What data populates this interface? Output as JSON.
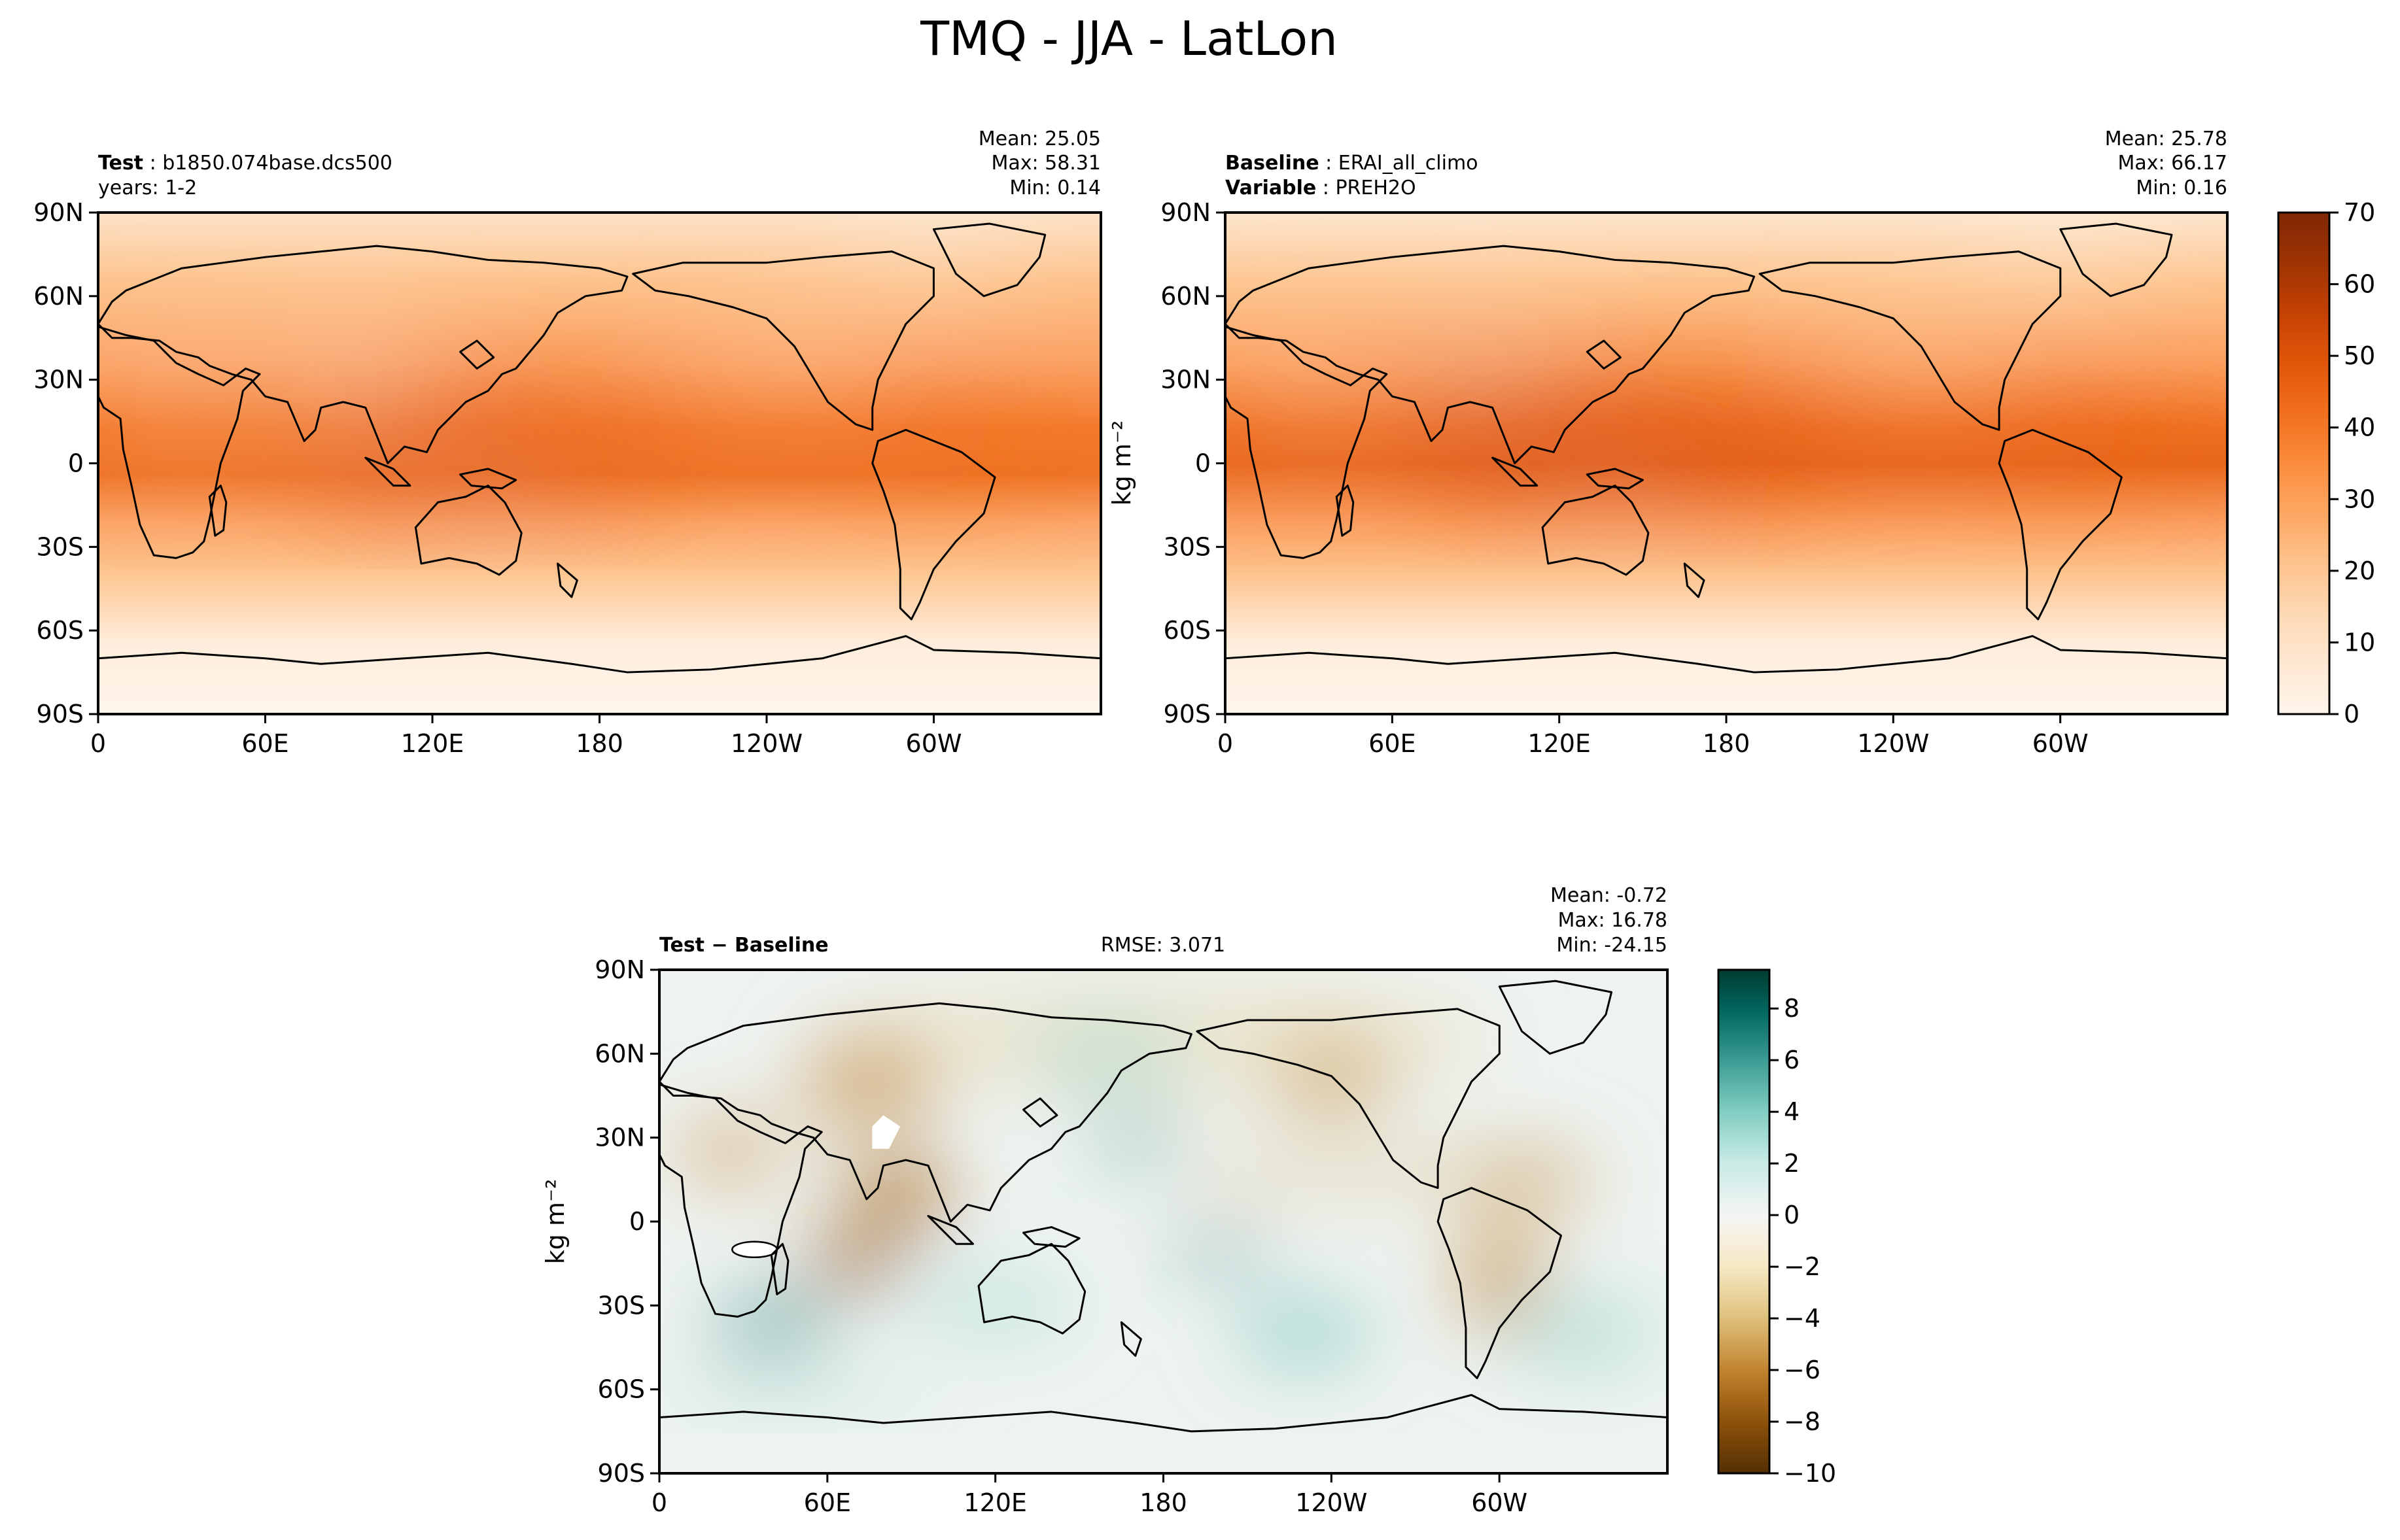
{
  "figure": {
    "title": "TMQ - JJA - LatLon"
  },
  "panels": {
    "test": {
      "name_label": "Test",
      "name_value": "b1850.074base.dcs500",
      "years": "years: 1-2",
      "mean": "Mean: 25.05",
      "max": "Max: 58.31",
      "min": "Min:  0.14"
    },
    "baseline": {
      "name_label": "Baseline",
      "name_value": "ERAI_all_climo",
      "var_label": "Variable",
      "var_value": "PREH2O",
      "mean": "Mean: 25.78",
      "max": "Max: 66.17",
      "min": "Min:  0.16"
    },
    "diff": {
      "name_label": "Test − Baseline",
      "rmse": "RMSE: 3.071",
      "mean": "Mean: -0.72",
      "max": "Max: 16.78",
      "min": "Min: -24.15"
    }
  },
  "units": "kg m⁻²",
  "colors": {
    "orange_ramp": [
      "#fff5eb",
      "#fee8d3",
      "#fdd9b4",
      "#fdc38d",
      "#fda762",
      "#fb8d3d",
      "#f2701d",
      "#e25609",
      "#c44103",
      "#9f3303",
      "#7f2704"
    ],
    "brbg_ramp": [
      "#543005",
      "#8c510a",
      "#bf812d",
      "#dfc27d",
      "#f6e8c3",
      "#f5f5f5",
      "#c7eae5",
      "#80cdc1",
      "#35978f",
      "#01665e",
      "#003c30"
    ],
    "coastline": "#000000"
  },
  "chart_data": [
    {
      "type": "heatmap",
      "title": "Test: b1850.074base.dcs500",
      "xlabel": "",
      "ylabel": "",
      "x_ticks": [
        "0",
        "60E",
        "120E",
        "180",
        "120W",
        "60W"
      ],
      "y_ticks": [
        "90N",
        "60N",
        "30N",
        "0",
        "30S",
        "60S",
        "90S"
      ],
      "stats": {
        "mean": 25.05,
        "max": 58.31,
        "min": 0.14
      },
      "colorbar": {
        "range": [
          0,
          70
        ],
        "ticks": [
          0,
          10,
          20,
          30,
          40,
          50,
          60,
          70
        ],
        "label": "kg m⁻²"
      }
    },
    {
      "type": "heatmap",
      "title": "Baseline: ERAI_all_climo",
      "xlabel": "",
      "ylabel": "kg m⁻²",
      "x_ticks": [
        "0",
        "60E",
        "120E",
        "180",
        "120W",
        "60W"
      ],
      "y_ticks": [
        "90N",
        "60N",
        "30N",
        "0",
        "30S",
        "60S",
        "90S"
      ],
      "stats": {
        "mean": 25.78,
        "max": 66.17,
        "min": 0.16
      },
      "colorbar": {
        "range": [
          0,
          70
        ],
        "ticks": [
          0,
          10,
          20,
          30,
          40,
          50,
          60,
          70
        ],
        "label": ""
      }
    },
    {
      "type": "heatmap",
      "title": "Test − Baseline",
      "xlabel": "",
      "ylabel": "kg m⁻²",
      "x_ticks": [
        "0",
        "60E",
        "120E",
        "180",
        "120W",
        "60W"
      ],
      "y_ticks": [
        "90N",
        "60N",
        "30N",
        "0",
        "30S",
        "60S",
        "90S"
      ],
      "stats": {
        "mean": -0.72,
        "max": 16.78,
        "min": -24.15,
        "rmse": 3.071
      },
      "colorbar": {
        "range": [
          -10,
          9.5
        ],
        "ticks": [
          -10,
          -8,
          -6,
          -4,
          -2,
          0,
          2,
          4,
          6,
          8
        ],
        "label": ""
      }
    }
  ]
}
